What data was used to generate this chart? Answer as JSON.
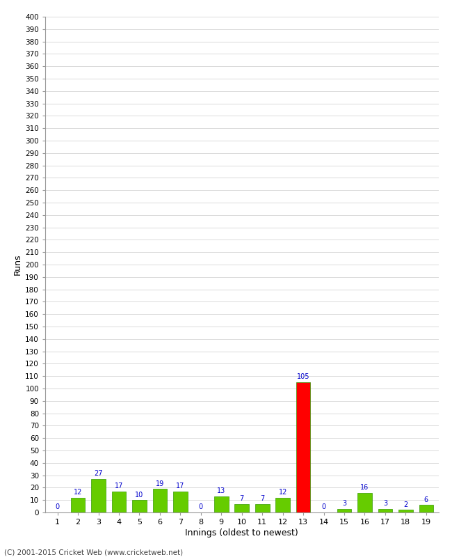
{
  "innings": [
    1,
    2,
    3,
    4,
    5,
    6,
    7,
    8,
    9,
    10,
    11,
    12,
    13,
    14,
    15,
    16,
    17,
    18,
    19
  ],
  "runs": [
    0,
    12,
    27,
    17,
    10,
    19,
    17,
    0,
    13,
    7,
    7,
    12,
    105,
    0,
    3,
    16,
    3,
    2,
    6
  ],
  "colors": [
    "#66cc00",
    "#66cc00",
    "#66cc00",
    "#66cc00",
    "#66cc00",
    "#66cc00",
    "#66cc00",
    "#66cc00",
    "#66cc00",
    "#66cc00",
    "#66cc00",
    "#66cc00",
    "#ff0000",
    "#66cc00",
    "#66cc00",
    "#66cc00",
    "#66cc00",
    "#66cc00",
    "#66cc00"
  ],
  "xlabel": "Innings (oldest to newest)",
  "ylabel": "Runs",
  "ylim": [
    0,
    400
  ],
  "background_color": "#ffffff",
  "bar_edge_color": "#339900",
  "label_color": "#0000cc",
  "footer_text": "(C) 2001-2015 Cricket Web (www.cricketweb.net)"
}
